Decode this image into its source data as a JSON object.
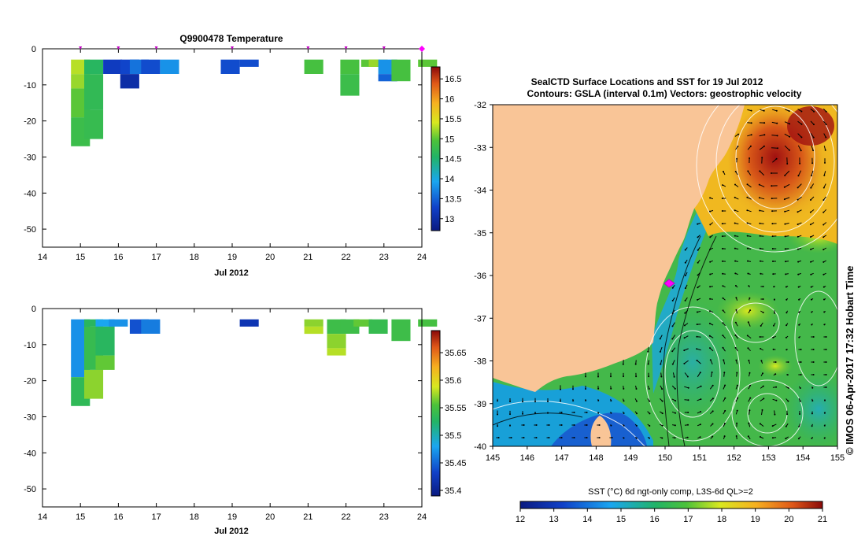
{
  "chart_data": [
    {
      "type": "heatmap",
      "title": "Q9900478  Temperature",
      "xlabel": "Jul 2012",
      "ylabel": "",
      "xlim": [
        14,
        24
      ],
      "ylim": [
        -55,
        0
      ],
      "x_ticks": [
        "14",
        "15",
        "16",
        "17",
        "18",
        "19",
        "20",
        "21",
        "22",
        "23",
        "24"
      ],
      "y_ticks": [
        "0",
        "-10",
        "-20",
        "-30",
        "-40",
        "-50"
      ],
      "surface_markers_day": [
        15,
        16,
        17,
        19,
        21,
        22,
        23,
        24
      ],
      "highlight_day": 24,
      "colorbar": {
        "min": 12.7,
        "max": 16.8,
        "ticks": [
          "13",
          "13.5",
          "14",
          "14.5",
          "15",
          "15.5",
          "16",
          "16.5"
        ],
        "tick_values": [
          13,
          13.5,
          14,
          14.5,
          15,
          15.5,
          16,
          16.5
        ]
      },
      "cells": [
        {
          "day": 14.75,
          "depth_top": 3,
          "depth_bottom": 7,
          "value": 15.3
        },
        {
          "day": 14.75,
          "depth_top": 7,
          "depth_bottom": 11,
          "value": 15.2
        },
        {
          "day": 14.75,
          "depth_top": 11,
          "depth_bottom": 19,
          "value": 15.0
        },
        {
          "day": 14.75,
          "depth_top": 19,
          "depth_bottom": 27,
          "value": 14.8
        },
        {
          "day": 15.1,
          "depth_top": 3,
          "depth_bottom": 7,
          "value": 14.6
        },
        {
          "day": 15.1,
          "depth_top": 7,
          "depth_bottom": 17,
          "value": 14.7
        },
        {
          "day": 15.1,
          "depth_top": 17,
          "depth_bottom": 25,
          "value": 14.75
        },
        {
          "day": 15.6,
          "depth_top": 3,
          "depth_bottom": 7,
          "value": 13.2
        },
        {
          "day": 16.05,
          "depth_top": 3,
          "depth_bottom": 7,
          "value": 13.3
        },
        {
          "day": 16.05,
          "depth_top": 7,
          "depth_bottom": 11,
          "value": 13.0
        },
        {
          "day": 16.3,
          "depth_top": 3,
          "depth_bottom": 7,
          "value": 13.6
        },
        {
          "day": 16.6,
          "depth_top": 3,
          "depth_bottom": 7,
          "value": 13.35
        },
        {
          "day": 17.1,
          "depth_top": 3,
          "depth_bottom": 7,
          "value": 13.8
        },
        {
          "day": 18.7,
          "depth_top": 3,
          "depth_bottom": 7,
          "value": 13.35
        },
        {
          "day": 19.2,
          "depth_top": 3,
          "depth_bottom": 5,
          "value": 13.35
        },
        {
          "day": 20.9,
          "depth_top": 3,
          "depth_bottom": 7,
          "value": 14.9
        },
        {
          "day": 21.85,
          "depth_top": 3,
          "depth_bottom": 7,
          "value": 14.9
        },
        {
          "day": 21.85,
          "depth_top": 7,
          "depth_bottom": 13,
          "value": 14.8
        },
        {
          "day": 22.4,
          "depth_top": 3,
          "depth_bottom": 5,
          "value": 15.0
        },
        {
          "day": 22.6,
          "depth_top": 3,
          "depth_bottom": 5,
          "value": 15.2
        },
        {
          "day": 22.85,
          "depth_top": 3,
          "depth_bottom": 7,
          "value": 13.8
        },
        {
          "day": 22.85,
          "depth_top": 7,
          "depth_bottom": 9,
          "value": 13.5
        },
        {
          "day": 23.2,
          "depth_top": 3,
          "depth_bottom": 9,
          "value": 14.9
        },
        {
          "day": 23.9,
          "depth_top": 3,
          "depth_bottom": 5,
          "value": 15.0
        }
      ]
    },
    {
      "type": "heatmap",
      "title": "",
      "xlabel": "Jul 2012",
      "ylabel": "",
      "xlim": [
        14,
        24
      ],
      "ylim": [
        -55,
        0
      ],
      "x_ticks": [
        "14",
        "15",
        "16",
        "17",
        "18",
        "19",
        "20",
        "21",
        "22",
        "23",
        "24"
      ],
      "y_ticks": [
        "0",
        "-10",
        "-20",
        "-30",
        "-40",
        "-50"
      ],
      "colorbar": {
        "min": 35.39,
        "max": 35.69,
        "ticks": [
          "35.4",
          "35.45",
          "35.5",
          "35.55",
          "35.6",
          "35.65"
        ],
        "tick_values": [
          35.4,
          35.45,
          35.5,
          35.55,
          35.6,
          35.65
        ]
      },
      "cells": [
        {
          "day": 14.75,
          "depth_top": 3,
          "depth_bottom": 19,
          "value": 35.47
        },
        {
          "day": 14.75,
          "depth_top": 19,
          "depth_bottom": 27,
          "value": 35.535
        },
        {
          "day": 15.1,
          "depth_top": 3,
          "depth_bottom": 5,
          "value": 35.53
        },
        {
          "day": 15.1,
          "depth_top": 5,
          "depth_bottom": 17,
          "value": 35.54
        },
        {
          "day": 15.1,
          "depth_top": 17,
          "depth_bottom": 25,
          "value": 35.57
        },
        {
          "day": 15.4,
          "depth_top": 3,
          "depth_bottom": 5,
          "value": 35.48
        },
        {
          "day": 15.4,
          "depth_top": 5,
          "depth_bottom": 13,
          "value": 35.53
        },
        {
          "day": 15.4,
          "depth_top": 13,
          "depth_bottom": 17,
          "value": 35.56
        },
        {
          "day": 15.75,
          "depth_top": 3,
          "depth_bottom": 5,
          "value": 35.47
        },
        {
          "day": 16.3,
          "depth_top": 3,
          "depth_bottom": 7,
          "value": 35.44
        },
        {
          "day": 16.6,
          "depth_top": 3,
          "depth_bottom": 7,
          "value": 35.46
        },
        {
          "day": 19.2,
          "depth_top": 3,
          "depth_bottom": 5,
          "value": 35.42
        },
        {
          "day": 20.9,
          "depth_top": 3,
          "depth_bottom": 5,
          "value": 35.57
        },
        {
          "day": 20.9,
          "depth_top": 5,
          "depth_bottom": 7,
          "value": 35.58
        },
        {
          "day": 21.5,
          "depth_top": 3,
          "depth_bottom": 7,
          "value": 35.545
        },
        {
          "day": 21.5,
          "depth_top": 7,
          "depth_bottom": 11,
          "value": 35.57
        },
        {
          "day": 21.5,
          "depth_top": 11,
          "depth_bottom": 13,
          "value": 35.58
        },
        {
          "day": 21.85,
          "depth_top": 3,
          "depth_bottom": 7,
          "value": 35.545
        },
        {
          "day": 22.2,
          "depth_top": 3,
          "depth_bottom": 5,
          "value": 35.56
        },
        {
          "day": 22.6,
          "depth_top": 3,
          "depth_bottom": 7,
          "value": 35.54
        },
        {
          "day": 23.2,
          "depth_top": 3,
          "depth_bottom": 9,
          "value": 35.545
        },
        {
          "day": 23.9,
          "depth_top": 3,
          "depth_bottom": 5,
          "value": 35.55
        }
      ]
    },
    {
      "type": "map",
      "title": "SealCTD Surface Locations and SST for 19 Jul 2012",
      "subtitle": "Contours: GSLA (interval 0.1m) Vectors: geostrophic velocity",
      "xlim": [
        145,
        155
      ],
      "ylim": [
        -40,
        -32
      ],
      "x_ticks": [
        "145",
        "146",
        "147",
        "148",
        "149",
        "150",
        "151",
        "152",
        "153",
        "154",
        "155"
      ],
      "y_ticks": [
        "-32",
        "-33",
        "-34",
        "-35",
        "-36",
        "-37",
        "-38",
        "-39",
        "-40"
      ],
      "side_label": "© IMOS 06-Apr-2017 17:32 Hobart Time",
      "seal_location": {
        "lon": 150.1,
        "lat": -36.2
      },
      "colorbar": {
        "label": "SST (°C) 6d ngt-only comp, L3S-6d QL>=2",
        "min": 12,
        "max": 21,
        "ticks": [
          "12",
          "13",
          "14",
          "15",
          "16",
          "17",
          "18",
          "19",
          "20",
          "21"
        ],
        "tick_values": [
          12,
          13,
          14,
          15,
          16,
          17,
          18,
          19,
          20,
          21
        ]
      }
    }
  ]
}
